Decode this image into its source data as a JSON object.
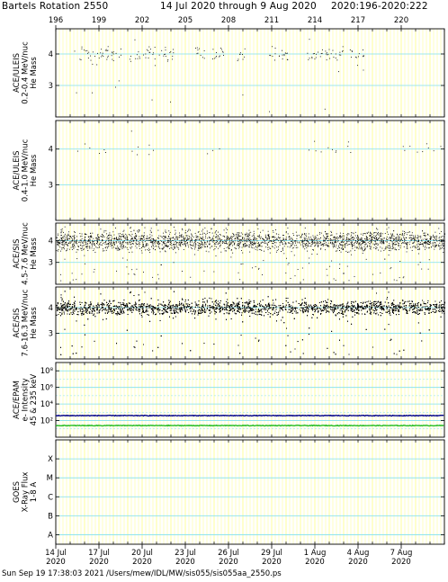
{
  "header": {
    "rotation": "Bartels Rotation 2550",
    "dates": "14 Jul 2020 through 9 Aug 2020",
    "doy": "2020:196-2020:222"
  },
  "footer": {
    "timestamp": "Sun Sep 19 17:38:03 2021",
    "path": "/Users/mew/IDL/MW/sis055/sis055aa_2550.ps"
  },
  "colors": {
    "day_grid": "#ffff99",
    "line_grid": "#7fdfee",
    "epam_low": "#22bb22",
    "epam_high": "#000088",
    "points": "#000000"
  },
  "chart_data": {
    "type": "scatter",
    "x_unit": "day of year 2020",
    "xlim": [
      196,
      223
    ],
    "top_axis_ticks": [
      "196",
      "199",
      "202",
      "205",
      "208",
      "211",
      "214",
      "217",
      "220"
    ],
    "bottom_axis_ticks": [
      {
        "day": "14 Jul",
        "year": "2020"
      },
      {
        "day": "17 Jul",
        "year": "2020"
      },
      {
        "day": "20 Jul",
        "year": "2020"
      },
      {
        "day": "23 Jul",
        "year": "2020"
      },
      {
        "day": "26 Jul",
        "year": "2020"
      },
      {
        "day": "29 Jul",
        "year": "2020"
      },
      {
        "day": "1 Aug",
        "year": "2020"
      },
      {
        "day": "4 Aug",
        "year": "2020"
      },
      {
        "day": "7 Aug",
        "year": "2020"
      }
    ],
    "panels": [
      {
        "instrument": "ACE/ULEIS",
        "energy": "0.2-0.4 MeV/nuc",
        "quantity": "He Mass",
        "ylim": [
          2,
          4.8
        ],
        "y_ticks": [
          "3",
          "4"
        ],
        "center": 4.0,
        "spread": 0.12,
        "density": "sparse",
        "coverage": [
          [
            197.2,
            200.6
          ],
          [
            201.1,
            204.2
          ],
          [
            205.6,
            206.3
          ],
          [
            206.8,
            207.7
          ],
          [
            208.6,
            209.3
          ],
          [
            210.8,
            212.2
          ],
          [
            213.3,
            216.0
          ],
          [
            216.4,
            217.4
          ]
        ]
      },
      {
        "instrument": "ACE/ULEIS",
        "energy": "0.4-1.0 MeV/nuc",
        "quantity": "He Mass",
        "ylim": [
          2,
          4.8
        ],
        "y_ticks": [
          "3",
          "4"
        ],
        "center": 4.0,
        "spread": 0.08,
        "density": "very sparse",
        "coverage": [
          [
            197.5,
            199.5
          ],
          [
            201.2,
            203.5
          ],
          [
            206.5,
            207.5
          ],
          [
            213.0,
            216.5
          ],
          [
            220.0,
            223.0
          ]
        ]
      },
      {
        "instrument": "ACE/SIS",
        "energy": "4.5-7.6 MeV/nuc",
        "quantity": "He Mass",
        "ylim": [
          2,
          4.8
        ],
        "y_ticks": [
          "3",
          "4"
        ],
        "center": 4.0,
        "spread": 0.22,
        "density": "moderate",
        "coverage": [
          [
            196,
            223
          ]
        ]
      },
      {
        "instrument": "ACE/SIS",
        "energy": "7.6-16.3 MeV/nuc",
        "quantity": "He Mass",
        "ylim": [
          2,
          4.8
        ],
        "y_ticks": [
          "3",
          "4"
        ],
        "center": 4.0,
        "spread": 0.14,
        "density": "dense",
        "coverage": [
          [
            196,
            223
          ]
        ]
      },
      {
        "instrument": "ACE/EPAM",
        "quantity": "e- Intensity",
        "channels": "45 & 235 keV",
        "ylim_log10": [
          0,
          9
        ],
        "y_ticks": [
          "10²",
          "10⁴",
          "10⁶",
          "10⁸"
        ],
        "series": [
          {
            "name": "45 keV",
            "color": "#000088",
            "log10_value": 2.6
          },
          {
            "name": "235 keV",
            "color": "#22bb22",
            "log10_value": 1.4
          }
        ]
      },
      {
        "instrument": "GOES",
        "quantity": "X-Ray Flux",
        "band": "1-8 A",
        "y_ticks": [
          "A",
          "B",
          "C",
          "M",
          "X"
        ],
        "series": []
      }
    ]
  }
}
